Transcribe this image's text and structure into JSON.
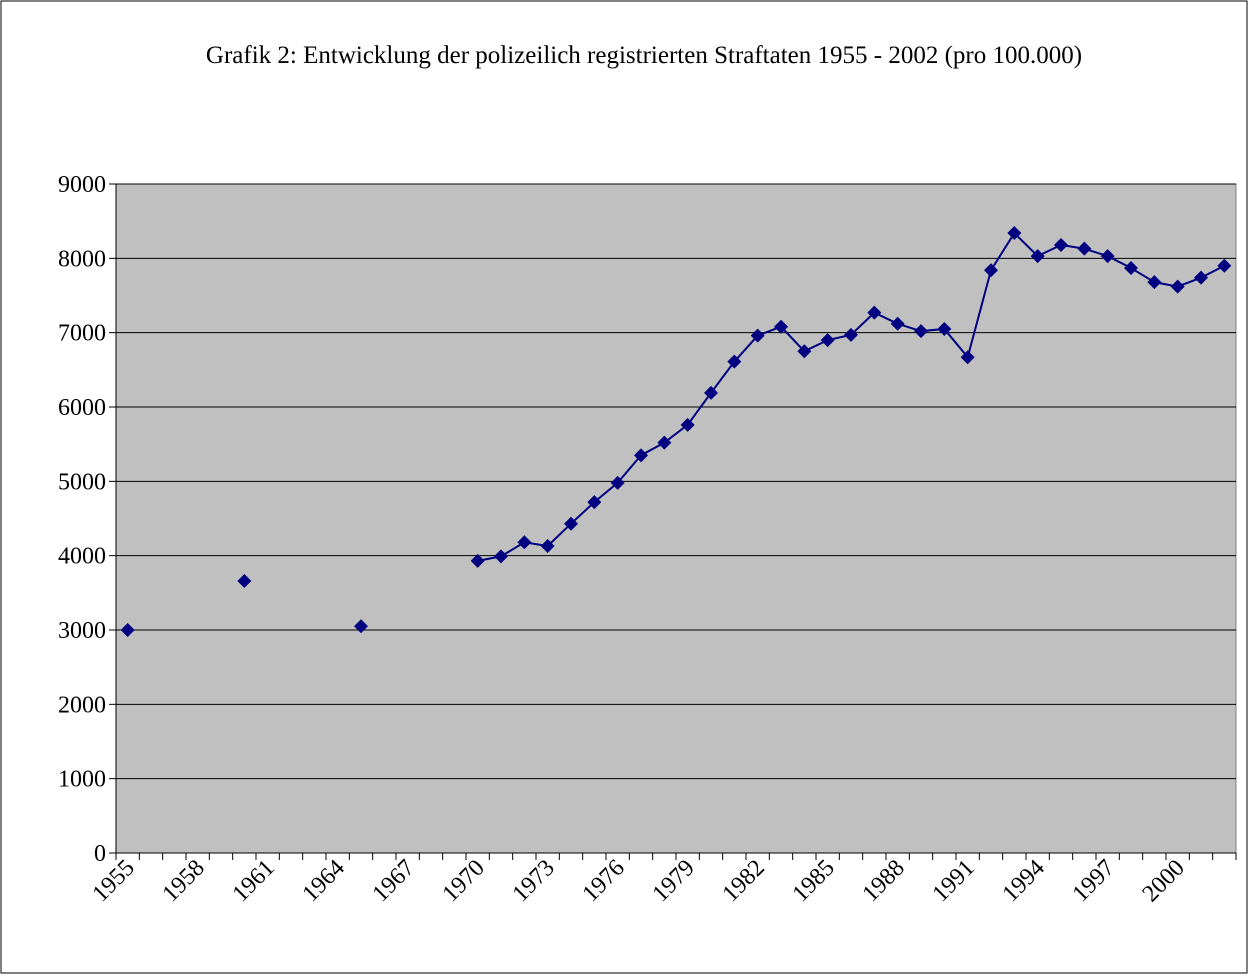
{
  "chart_data": {
    "type": "line",
    "title": "Grafik 2: Entwicklung der polizeilich registrierten Straftaten 1955 - 2002 (pro 100.000)",
    "categories": [
      "1955",
      null,
      null,
      "1958",
      null,
      null,
      "1961",
      null,
      null,
      "1964",
      null,
      null,
      "1967",
      null,
      null,
      "1970",
      null,
      null,
      "1973",
      null,
      null,
      "1976",
      null,
      null,
      "1979",
      null,
      null,
      "1982",
      null,
      null,
      "1985",
      null,
      null,
      "1988",
      null,
      null,
      "1991",
      null,
      null,
      "1994",
      null,
      null,
      "1997",
      null,
      null,
      "2000",
      null,
      null
    ],
    "series": [
      {
        "name": "Straftaten",
        "color": "#000080",
        "values": [
          3000,
          null,
          null,
          null,
          null,
          3660,
          null,
          null,
          null,
          null,
          3050,
          null,
          null,
          null,
          null,
          3930,
          3990,
          4180,
          4130,
          4430,
          4720,
          4980,
          5350,
          5520,
          5760,
          6190,
          6610,
          6960,
          7080,
          6750,
          6900,
          6970,
          7270,
          7120,
          7020,
          7050,
          6670,
          7840,
          8340,
          8030,
          8180,
          8130,
          8030,
          7870,
          7680,
          7620,
          7740,
          7900
        ]
      }
    ],
    "ylim": [
      0,
      9000
    ],
    "yticks": [
      0,
      1000,
      2000,
      3000,
      4000,
      5000,
      6000,
      7000,
      8000,
      9000
    ],
    "grid": true
  }
}
